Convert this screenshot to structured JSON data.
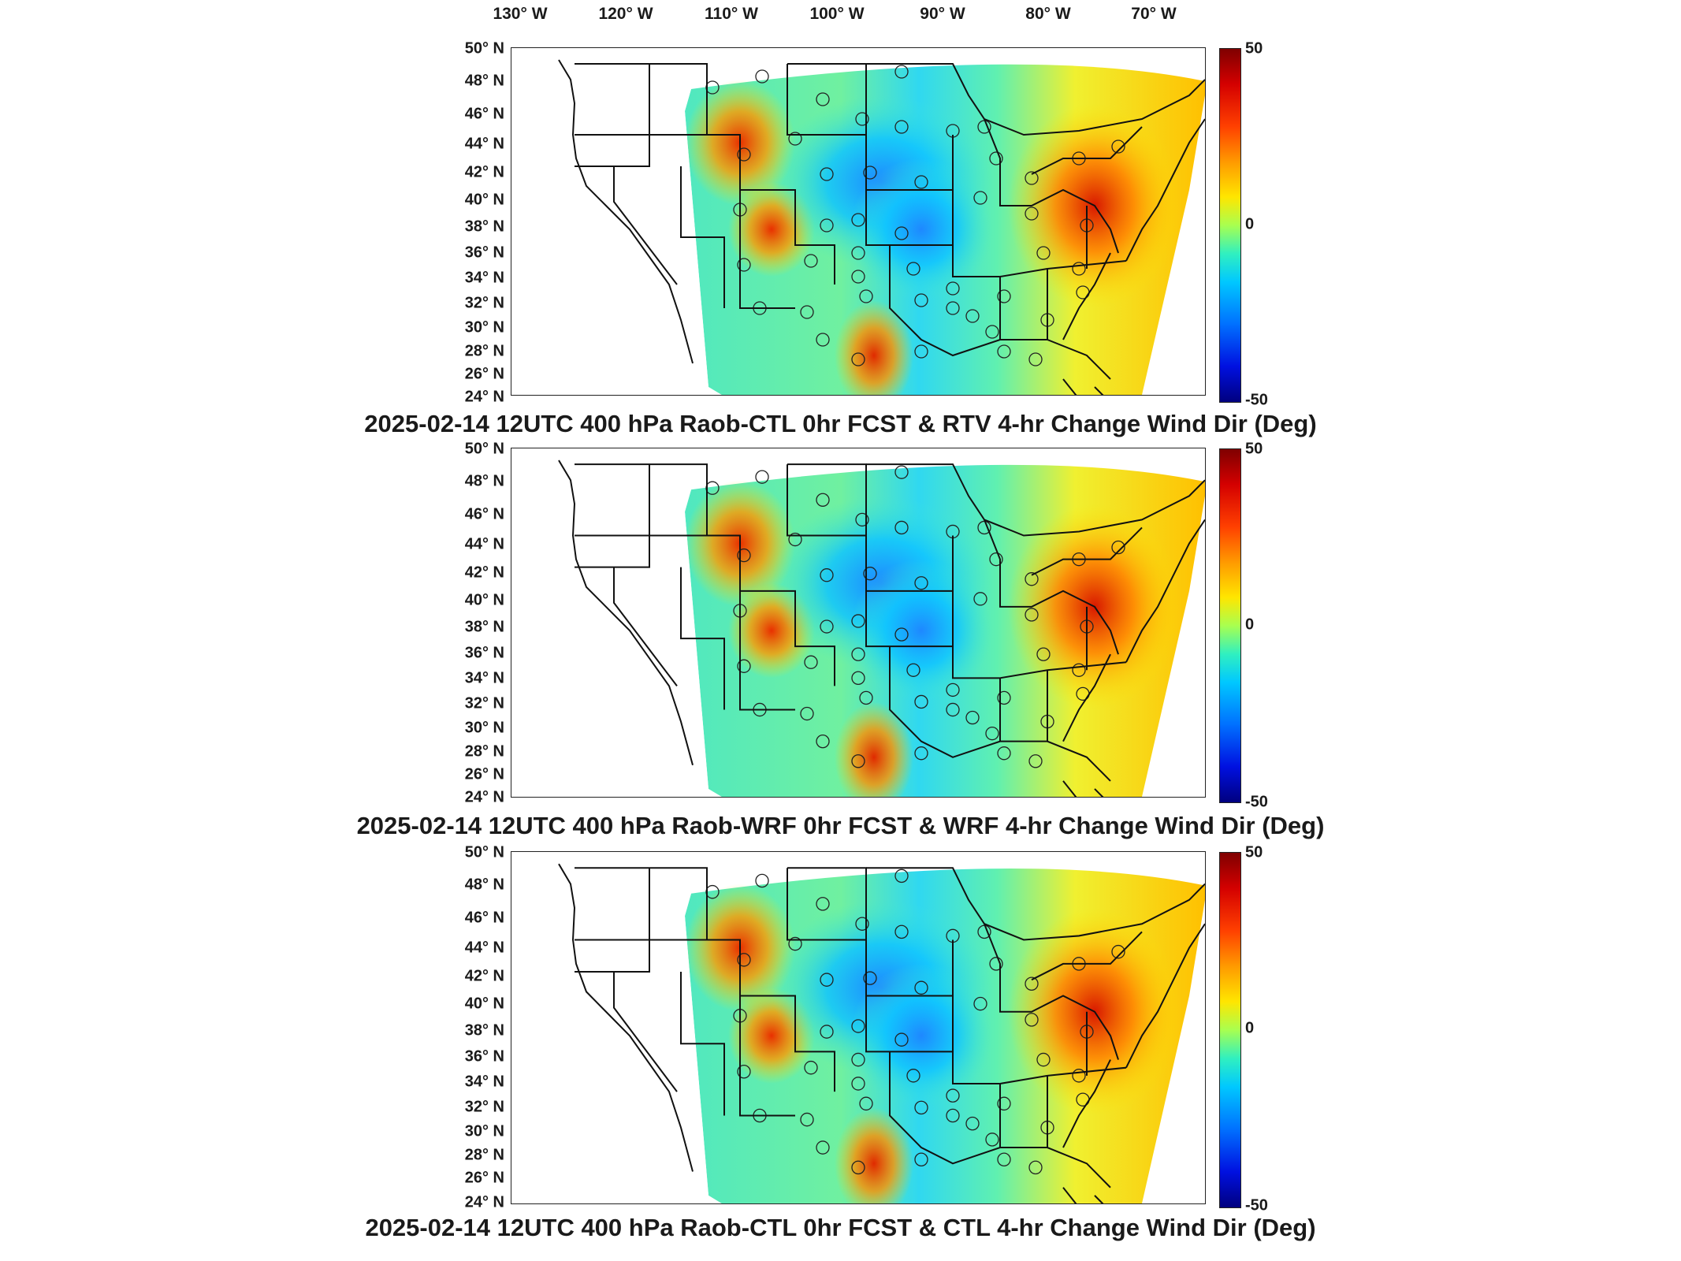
{
  "longitude_labels": [
    "130° W",
    "120° W",
    "110° W",
    "100° W",
    "90° W",
    "80° W",
    "70° W"
  ],
  "latitude_labels": [
    "50° N",
    "48° N",
    "46° N",
    "44° N",
    "42° N",
    "40° N",
    "38° N",
    "36° N",
    "34° N",
    "32° N",
    "30° N",
    "28° N",
    "26° N",
    "24° N"
  ],
  "colorbar": {
    "max_label": "50",
    "mid_label": "0",
    "min_label": "-50"
  },
  "colors": {
    "warm_peak": "#d40000",
    "warm": "#ff9a00",
    "neutral": "#ffe600",
    "cool": "#00c8ff",
    "cold": "#0010e0"
  },
  "panels": [
    {
      "title": "2025-02-14 12UTC 400 hPa Raob-CTL 0hr FCST & RTV 4-hr Change Wind Dir (Deg)"
    },
    {
      "title": "2025-02-14 12UTC 400 hPa Raob-WRF 0hr FCST & WRF 4-hr Change Wind Dir (Deg)"
    },
    {
      "title": "2025-02-14 12UTC 400 hPa Raob-CTL 0hr FCST & CTL 4-hr Change Wind Dir (Deg)"
    }
  ]
}
